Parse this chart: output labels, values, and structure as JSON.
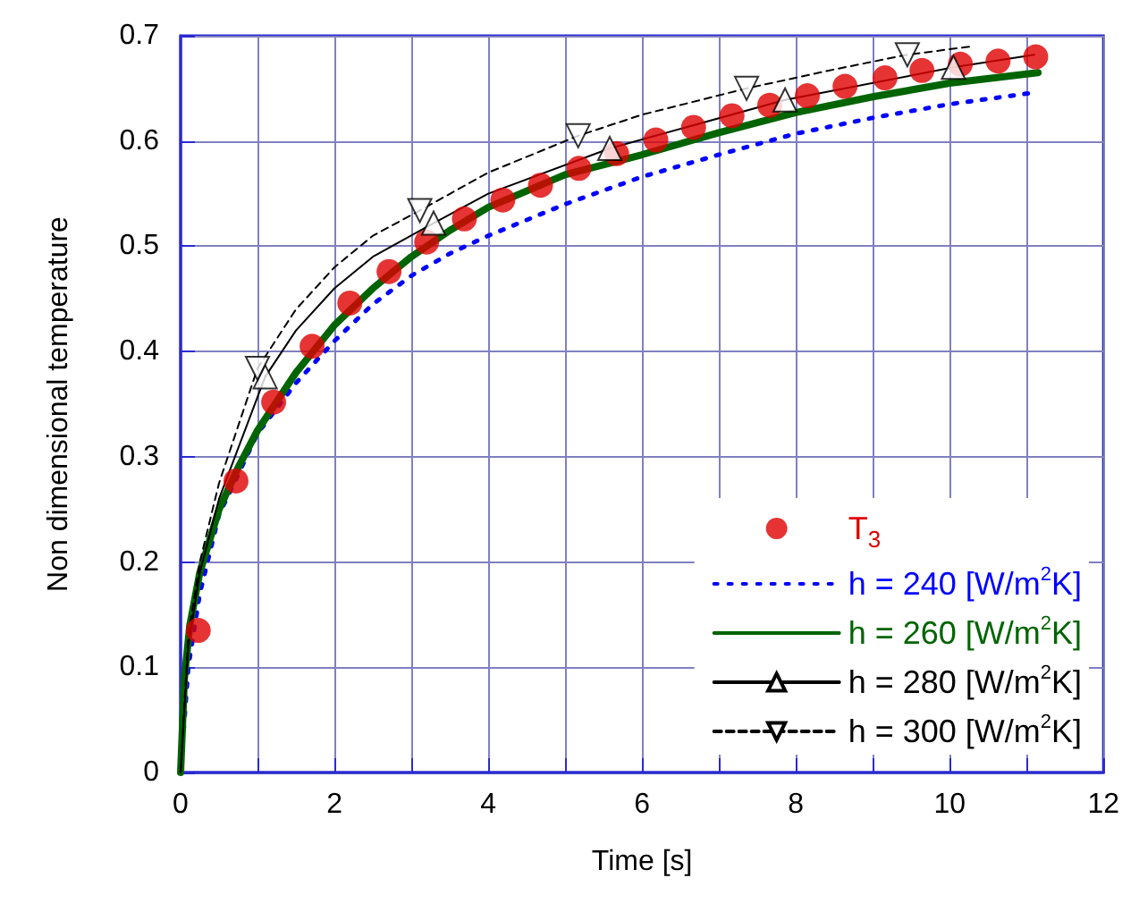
{
  "chart_data": {
    "type": "line",
    "xlabel": "Time [s]",
    "ylabel": "Non dimensional temperature",
    "xlim": [
      0,
      12
    ],
    "xticks": [
      0,
      2,
      4,
      6,
      8,
      10,
      12
    ],
    "ylim": [
      0,
      0.7
    ],
    "yticks": [
      0,
      0.1,
      0.2,
      0.3,
      0.4,
      0.5,
      0.6,
      0.7
    ],
    "grid": true,
    "legend": "bottom right",
    "series": [
      {
        "type": "scatter",
        "name": "T$_{3}$",
        "color": "#e00000",
        "marker": "circle",
        "x": [
          0.23,
          0.72,
          1.21,
          1.71,
          2.2,
          2.71,
          3.2,
          3.69,
          4.19,
          4.68,
          5.18,
          5.67,
          6.18,
          6.67,
          7.17,
          7.66,
          8.15,
          8.64,
          9.16,
          9.64,
          10.14,
          10.63,
          11.12
        ],
        "values": [
          0.135,
          0.277,
          0.352,
          0.405,
          0.446,
          0.476,
          0.504,
          0.526,
          0.544,
          0.558,
          0.574,
          0.588,
          0.601,
          0.613,
          0.624,
          0.634,
          0.643,
          0.652,
          0.66,
          0.667,
          0.673,
          0.676,
          0.68
        ]
      },
      {
        "name": "h = 240 [W/m$^{2}$K]",
        "color": "#0000ff",
        "line_style": "dotted",
        "x": [
          0,
          0.1,
          0.25,
          0.5,
          1,
          1.5,
          2,
          2.5,
          3,
          3.5,
          4,
          5,
          6,
          7,
          8,
          9,
          10,
          11.1
        ],
        "values": [
          0,
          0.1,
          0.17,
          0.245,
          0.322,
          0.37,
          0.41,
          0.445,
          0.472,
          0.493,
          0.51,
          0.54,
          0.566,
          0.587,
          0.607,
          0.622,
          0.635,
          0.646
        ]
      },
      {
        "name": "h = 260 [W/m$^{2}$K]",
        "color": "#006400",
        "line_style": "solid",
        "x": [
          0,
          0.05,
          0.12,
          0.25,
          0.5,
          0.75,
          1,
          1.5,
          2,
          2.5,
          3,
          3.5,
          4,
          5,
          6,
          7,
          8,
          9,
          10,
          11.15
        ],
        "values": [
          0,
          0.09,
          0.14,
          0.19,
          0.25,
          0.29,
          0.325,
          0.38,
          0.425,
          0.46,
          0.49,
          0.515,
          0.537,
          0.568,
          0.587,
          0.608,
          0.627,
          0.642,
          0.655,
          0.665
        ]
      },
      {
        "name": "h = 280 [W/m$^{2}$K]",
        "color": "#000000",
        "line_style": "solid",
        "x": [
          0,
          0.1,
          0.25,
          0.5,
          1.1,
          1.5,
          2,
          2.5,
          3.29,
          4,
          5.58,
          7.86,
          10.05,
          11.1
        ],
        "values": [
          0,
          0.12,
          0.19,
          0.26,
          0.376,
          0.42,
          0.46,
          0.49,
          0.522,
          0.55,
          0.593,
          0.639,
          0.67,
          0.682
        ]
      },
      {
        "type": "scatter",
        "color": "#000000",
        "marker": "triangle",
        "x": [
          1.1,
          3.29,
          5.58,
          7.86,
          10.05
        ],
        "values": [
          0.376,
          0.522,
          0.593,
          0.639,
          0.67
        ]
      },
      {
        "name": "h = 300 [W/m$^{2}$K]",
        "color": "#000000",
        "line_style": "dashed",
        "x": [
          0,
          0.1,
          0.25,
          0.5,
          1,
          1.5,
          2,
          2.5,
          3.11,
          4,
          5.17,
          6,
          7.36,
          8.5,
          9.45,
          10.3
        ],
        "values": [
          0,
          0.13,
          0.2,
          0.275,
          0.384,
          0.44,
          0.48,
          0.51,
          0.534,
          0.57,
          0.605,
          0.625,
          0.65,
          0.668,
          0.682,
          0.69
        ]
      },
      {
        "type": "scatter",
        "color": "#000000",
        "marker": "triangle-down",
        "x": [
          1,
          3.11,
          5.17,
          7.36,
          9.45
        ],
        "values": [
          0.384,
          0.534,
          0.605,
          0.65,
          0.682
        ]
      }
    ]
  }
}
